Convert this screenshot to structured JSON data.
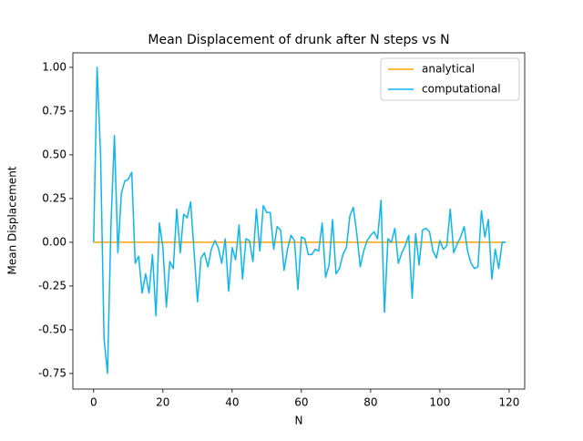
{
  "chart_data": {
    "type": "line",
    "title": "Mean Displacement of drunk after N steps vs N",
    "x_label": "N",
    "y_label": "Mean Displacement",
    "x": [
      0,
      1,
      2,
      3,
      4,
      5,
      6,
      7,
      8,
      9,
      10,
      11,
      12,
      13,
      14,
      15,
      16,
      17,
      18,
      19,
      20,
      21,
      22,
      23,
      24,
      25,
      26,
      27,
      28,
      29,
      30,
      31,
      32,
      33,
      34,
      35,
      36,
      37,
      38,
      39,
      40,
      41,
      42,
      43,
      44,
      45,
      46,
      47,
      48,
      49,
      50,
      51,
      52,
      53,
      54,
      55,
      56,
      57,
      58,
      59,
      60,
      61,
      62,
      63,
      64,
      65,
      66,
      67,
      68,
      69,
      70,
      71,
      72,
      73,
      74,
      75,
      76,
      77,
      78,
      79,
      80,
      81,
      82,
      83,
      84,
      85,
      86,
      87,
      88,
      89,
      90,
      91,
      92,
      93,
      94,
      95,
      96,
      97,
      98,
      99,
      100,
      101,
      102,
      103,
      104,
      105,
      106,
      107,
      108,
      109,
      110,
      111,
      112,
      113,
      114,
      115,
      116,
      117,
      118,
      119
    ],
    "series": [
      {
        "name": "analytical",
        "color": "#ffa500",
        "values": [
          0,
          0,
          0,
          0,
          0,
          0,
          0,
          0,
          0,
          0,
          0,
          0,
          0,
          0,
          0,
          0,
          0,
          0,
          0,
          0,
          0,
          0,
          0,
          0,
          0,
          0,
          0,
          0,
          0,
          0,
          0,
          0,
          0,
          0,
          0,
          0,
          0,
          0,
          0,
          0,
          0,
          0,
          0,
          0,
          0,
          0,
          0,
          0,
          0,
          0,
          0,
          0,
          0,
          0,
          0,
          0,
          0,
          0,
          0,
          0,
          0,
          0,
          0,
          0,
          0,
          0,
          0,
          0,
          0,
          0,
          0,
          0,
          0,
          0,
          0,
          0,
          0,
          0,
          0,
          0,
          0,
          0,
          0,
          0,
          0,
          0,
          0,
          0,
          0,
          0,
          0,
          0,
          0,
          0,
          0,
          0,
          0,
          0,
          0,
          0,
          0,
          0,
          0,
          0,
          0,
          0,
          0,
          0,
          0,
          0,
          0,
          0,
          0,
          0,
          0,
          0,
          0,
          0,
          0,
          0
        ]
      },
      {
        "name": "computational",
        "color": "#0cb5ee",
        "values": [
          0,
          1.0,
          0.5,
          -0.55,
          -0.75,
          0.1,
          0.61,
          -0.06,
          0.28,
          0.35,
          0.36,
          0.4,
          -0.12,
          -0.08,
          -0.29,
          -0.18,
          -0.29,
          -0.07,
          -0.42,
          0.11,
          -0.03,
          -0.37,
          -0.11,
          -0.15,
          0.19,
          -0.06,
          0.16,
          0.14,
          0.23,
          -0.05,
          -0.34,
          -0.09,
          -0.06,
          -0.14,
          -0.04,
          0.01,
          -0.03,
          -0.12,
          0.02,
          -0.28,
          -0.03,
          -0.1,
          0.1,
          -0.21,
          0.02,
          0.01,
          -0.11,
          0.19,
          -0.05,
          0.21,
          0.17,
          0.17,
          -0.04,
          0.09,
          0.07,
          -0.16,
          -0.04,
          0.04,
          0.01,
          -0.27,
          0.03,
          0.02,
          -0.07,
          -0.07,
          -0.04,
          -0.05,
          0.11,
          -0.2,
          -0.13,
          0.13,
          -0.18,
          -0.15,
          -0.07,
          -0.03,
          0.15,
          0.2,
          0.05,
          -0.14,
          -0.05,
          0.01,
          0.04,
          0.06,
          0.02,
          0.24,
          -0.4,
          0.02,
          0.0,
          0.08,
          -0.12,
          -0.06,
          -0.02,
          0.04,
          -0.32,
          0.05,
          -0.13,
          0.07,
          0.08,
          0.06,
          -0.05,
          -0.09,
          0.01,
          -0.04,
          -0.02,
          0.19,
          -0.06,
          -0.01,
          0.03,
          0.09,
          -0.05,
          -0.12,
          -0.15,
          -0.14,
          0.18,
          0.03,
          0.13,
          -0.21,
          -0.04,
          -0.15,
          0.0,
          0.0
        ]
      }
    ],
    "xlim": [
      -6,
      124.5
    ],
    "xticks": [
      0,
      20,
      40,
      60,
      80,
      100,
      120
    ],
    "ylim": [
      -0.839,
      1.083
    ],
    "yticks": [
      -0.75,
      {
        "value": -0.5,
        "label": "-0.50"
      },
      -0.25,
      {
        "value": 0,
        "label": "0.00"
      },
      0.25,
      {
        "value": 0.5,
        "label": "0.50"
      },
      0.75,
      {
        "value": 1,
        "label": "1.00"
      }
    ],
    "legend": "upper right"
  }
}
